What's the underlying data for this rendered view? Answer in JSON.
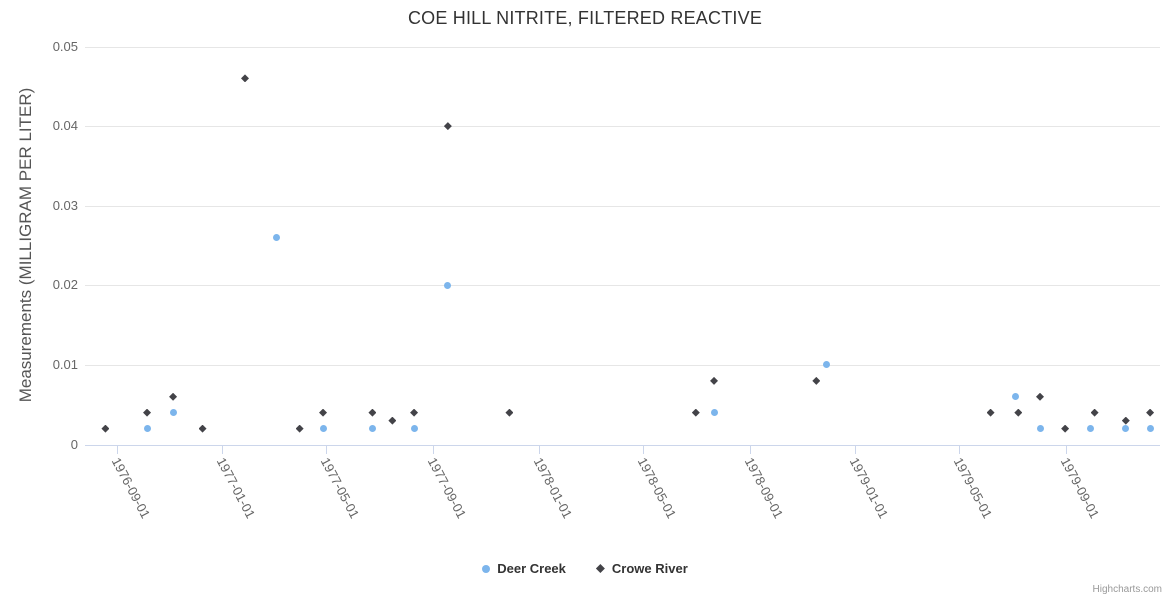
{
  "title": "COE HILL NITRITE, FILTERED REACTIVE",
  "credits": "Highcharts.com",
  "y_axis": {
    "title": "Measurements (MILLIGRAM PER LITER)",
    "tick_labels": [
      "0",
      "0.01",
      "0.02",
      "0.03",
      "0.04",
      "0.05"
    ]
  },
  "x_axis": {
    "tick_labels": [
      "1976-09-01",
      "1977-01-01",
      "1977-05-01",
      "1977-09-01",
      "1978-01-01",
      "1978-05-01",
      "1978-09-01",
      "1979-01-01",
      "1979-05-01",
      "1979-09-01"
    ]
  },
  "legend": {
    "items": [
      {
        "label": "Deer Creek",
        "marker": "circle",
        "color": "#7cb5ec"
      },
      {
        "label": "Crowe River",
        "marker": "diamond",
        "color": "#434348"
      }
    ]
  },
  "chart_data": {
    "type": "scatter",
    "title": "COE HILL NITRITE, FILTERED REACTIVE",
    "xlabel": "",
    "ylabel": "Measurements (MILLIGRAM PER LITER)",
    "ylim": [
      0,
      0.05
    ],
    "x_range": [
      "1976-08-01",
      "1980-01-01"
    ],
    "grid": "horizontal",
    "legend_position": "bottom-center",
    "x_ticks": [
      "1976-09-01",
      "1977-01-01",
      "1977-05-01",
      "1977-09-01",
      "1978-01-01",
      "1978-05-01",
      "1978-09-01",
      "1979-01-01",
      "1979-05-01",
      "1979-09-01"
    ],
    "y_ticks": [
      0,
      0.01,
      0.02,
      0.03,
      0.04,
      0.05
    ],
    "series": [
      {
        "name": "Deer Creek",
        "color": "#7cb5ec",
        "marker": "circle",
        "points": [
          [
            "1976-10-06",
            0.002
          ],
          [
            "1976-11-05",
            0.004
          ],
          [
            "1977-03-04",
            0.026
          ],
          [
            "1977-04-28",
            0.002
          ],
          [
            "1977-06-23",
            0.002
          ],
          [
            "1977-08-11",
            0.002
          ],
          [
            "1977-09-17",
            0.02
          ],
          [
            "1978-07-22",
            0.004
          ],
          [
            "1978-11-29",
            0.01
          ],
          [
            "1979-07-05",
            0.006
          ],
          [
            "1979-08-03",
            0.002
          ],
          [
            "1979-09-29",
            0.002
          ],
          [
            "1979-11-09",
            0.002
          ],
          [
            "1979-12-07",
            0.002
          ]
        ]
      },
      {
        "name": "Crowe River",
        "color": "#434348",
        "marker": "diamond",
        "points": [
          [
            "1976-08-19",
            0.002
          ],
          [
            "1976-10-06",
            0.004
          ],
          [
            "1976-11-05",
            0.006
          ],
          [
            "1976-12-09",
            0.002
          ],
          [
            "1977-01-27",
            0.046
          ],
          [
            "1977-03-31",
            0.002
          ],
          [
            "1977-04-27",
            0.004
          ],
          [
            "1977-06-23",
            0.004
          ],
          [
            "1977-07-16",
            0.003
          ],
          [
            "1977-08-10",
            0.004
          ],
          [
            "1977-09-18",
            0.04
          ],
          [
            "1977-11-28",
            0.004
          ],
          [
            "1978-07-01",
            0.004
          ],
          [
            "1978-07-22",
            0.008
          ],
          [
            "1978-11-17",
            0.008
          ],
          [
            "1979-06-06",
            0.004
          ],
          [
            "1979-07-08",
            0.004
          ],
          [
            "1979-08-02",
            0.006
          ],
          [
            "1979-08-31",
            0.002
          ],
          [
            "1979-10-04",
            0.004
          ],
          [
            "1979-11-09",
            0.003
          ],
          [
            "1979-12-07",
            0.004
          ]
        ]
      }
    ]
  }
}
